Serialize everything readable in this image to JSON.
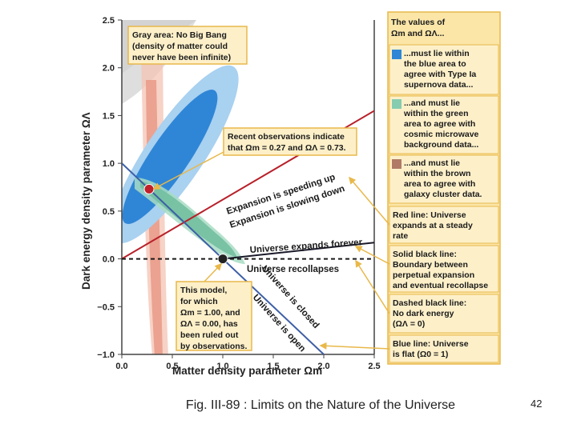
{
  "chart_data": {
    "type": "scatter",
    "xlabel": "Matter density parameter Ωm",
    "ylabel": "Dark energy density parameter ΩΛ",
    "xlim": [
      0.0,
      2.5
    ],
    "ylim": [
      -1.0,
      2.5
    ],
    "x_ticks": [
      "0.0",
      "0.5",
      "1.0",
      "1.5",
      "2.0",
      "2.5"
    ],
    "y_ticks": [
      "2.5",
      "2.0",
      "1.5",
      "1.0",
      "0.5",
      "0.0",
      "−0.5",
      "−1.0"
    ],
    "points": [
      {
        "name": "Recent observations",
        "x": 0.27,
        "y": 0.73,
        "color": "#c0202a"
      },
      {
        "name": "This model (ruled out)",
        "x": 1.0,
        "y": 0.0,
        "color": "#222222"
      }
    ],
    "lines": [
      {
        "name": "Red line",
        "x": [
          0.0,
          2.5
        ],
        "y": [
          0.0,
          1.55
        ],
        "color": "#b8202a"
      },
      {
        "name": "Solid black line",
        "x": [
          1.0,
          2.5
        ],
        "y": [
          0.0,
          0.17
        ],
        "color": "#1a1a2a"
      },
      {
        "name": "Dashed black line",
        "x": [
          0.0,
          2.5
        ],
        "y": [
          0.0,
          0.0
        ],
        "color": "#1a1a1a"
      },
      {
        "name": "Blue line",
        "x": [
          0.0,
          2.0
        ],
        "y": [
          1.0,
          -1.0
        ],
        "color": "#3d5fa6"
      }
    ],
    "regions": {
      "gray": "No Big Bang",
      "blue": "Type Ia supernova data",
      "green": "cosmic microwave background data",
      "brown": "galaxy cluster data"
    }
  },
  "annotations": {
    "gray_area": [
      "Gray area: No Big Bang",
      "(density of matter could",
      "never have been infinite)"
    ],
    "recent_obs": [
      "Recent observations indicate",
      "that Ωm = 0.27 and ΩΛ = 0.73."
    ],
    "this_model": [
      "This model,",
      "for which",
      "Ωm = 1.00, and",
      "ΩΛ = 0.00, has",
      "been ruled out",
      "by observations."
    ]
  },
  "line_labels": {
    "speeding_up": "Expansion is speeding up",
    "slowing_down": "Expansion is slowing down",
    "expands_forever": "Universe expands forever",
    "recollapses": "Universe recollapses",
    "closed": "Universe is closed",
    "open": "Universe is open"
  },
  "sidebar": {
    "intro": [
      "The values of",
      "Ωm and ΩΛ..."
    ],
    "blue": [
      "...must lie within",
      "the blue area to",
      "agree with Type Ia",
      "supernova data..."
    ],
    "green": [
      "...and must lie",
      "within the green",
      "area to agree with",
      "cosmic microwave",
      "background data..."
    ],
    "brown": [
      "...and must lie",
      "within the brown",
      "area to agree with",
      "galaxy cluster data."
    ],
    "red": [
      "Red line: Universe",
      "expands at a steady",
      "rate"
    ],
    "solid": [
      "Solid black line:",
      "Boundary between",
      "perpetual expansion",
      "and eventual recollapse"
    ],
    "dashed": [
      "Dashed black line:",
      "No dark energy",
      "(ΩΛ = 0)"
    ],
    "blueline": [
      "Blue line: Universe",
      "is flat (Ω0 = 1)"
    ],
    "colors": {
      "blue": "#2f86d6",
      "green": "#86ccb0",
      "brown": "#b07a66"
    }
  },
  "caption": "Fig. III-89 : Limits on the Nature of the Universe",
  "page_number": "42"
}
